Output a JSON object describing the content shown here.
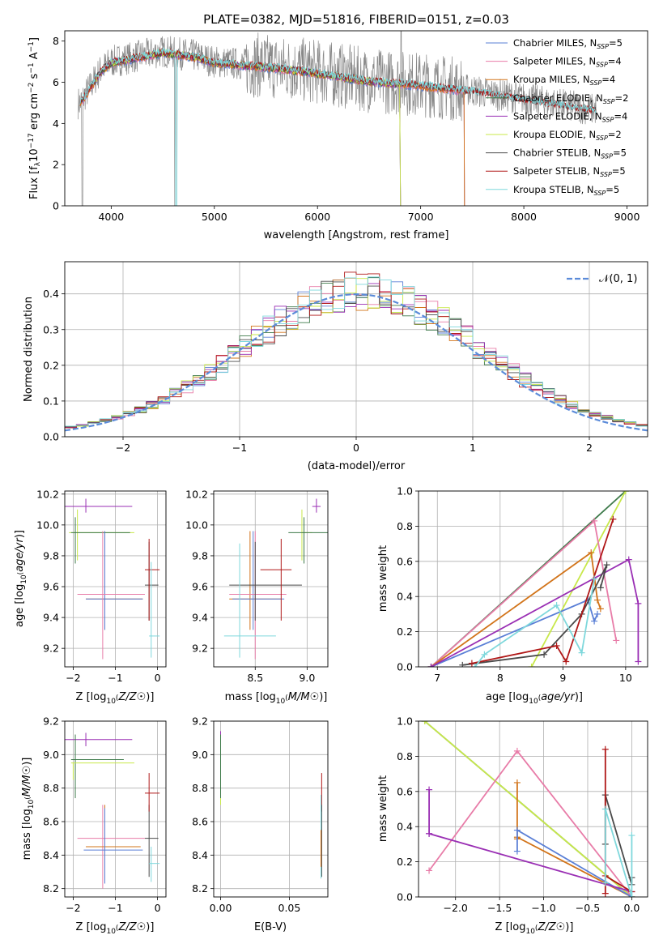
{
  "title": "PLATE=0382, MJD=51816, FIBERID=0151, z=0.03",
  "colors": {
    "Chabrier MILES": "#5a7fd6",
    "Salpeter MILES": "#e87ca8",
    "Kroupa MILES": "#d2741a",
    "Chabrier ELODIE": "#3e7a4a",
    "Salpeter ELODIE": "#9a2fb4",
    "Kroupa ELODIE": "#c8e84a",
    "Chabrier STELIB": "#4a4a4a",
    "Salpeter STELIB": "#b01818",
    "Kroupa STELIB": "#7fd8dc",
    "data": "#888888",
    "gaussian": "#5b8bd9",
    "grid": "#b0b0b0"
  },
  "chart_data": [
    {
      "type": "line",
      "panel": "spectrum",
      "title": "PLATE=0382, MJD=51816, FIBERID=0151, z=0.03",
      "xlabel": "wavelength [Angstrom, rest frame]",
      "ylabel": "Flux [f_λ10^-17 erg cm^-2 s^-1 A^-1]",
      "xlim": [
        3550,
        9200
      ],
      "ylim": [
        0,
        8.5
      ],
      "xticks": [
        4000,
        5000,
        6000,
        7000,
        8000,
        9000
      ],
      "yticks": [
        0,
        2,
        4,
        6,
        8
      ],
      "grid": false,
      "legend_position": "top-right",
      "legend": [
        {
          "label": "Chabrier MILES, N",
          "sub": "SSP",
          "suffix": "=5",
          "key": "Chabrier MILES"
        },
        {
          "label": "Salpeter MILES, N",
          "sub": "SSP",
          "suffix": "=4",
          "key": "Salpeter MILES"
        },
        {
          "label": "Kroupa MILES, N",
          "sub": "SSP",
          "suffix": "=4",
          "key": "Kroupa MILES"
        },
        {
          "label": "Chabrier ELODIE, N",
          "sub": "SSP",
          "suffix": "=2",
          "key": "Chabrier ELODIE"
        },
        {
          "label": "Salpeter ELODIE, N",
          "sub": "SSP",
          "suffix": "=4",
          "key": "Salpeter ELODIE"
        },
        {
          "label": "Kroupa ELODIE, N",
          "sub": "SSP",
          "suffix": "=2",
          "key": "Kroupa ELODIE"
        },
        {
          "label": "Chabrier STELIB, N",
          "sub": "SSP",
          "suffix": "=5",
          "key": "Chabrier STELIB"
        },
        {
          "label": "Salpeter STELIB, N",
          "sub": "SSP",
          "suffix": "=5",
          "key": "Salpeter STELIB"
        },
        {
          "label": "Kroupa STELIB, N",
          "sub": "SSP",
          "suffix": "=5",
          "key": "Kroupa STELIB"
        }
      ],
      "continuum": {
        "x": [
          3700,
          3800,
          3900,
          4000,
          4200,
          4500,
          4800,
          5000,
          5500,
          6000,
          6500,
          7000,
          7500,
          8000,
          8500,
          8800
        ],
        "y": [
          5.0,
          5.8,
          6.6,
          7.0,
          7.2,
          7.5,
          7.3,
          7.0,
          6.8,
          6.5,
          6.1,
          5.9,
          5.6,
          5.2,
          4.8,
          4.6
        ]
      },
      "model_ranges": {
        "Chabrier MILES": [
          3700,
          7420
        ],
        "Salpeter MILES": [
          3700,
          7420
        ],
        "Kroupa MILES": [
          3700,
          7420
        ],
        "Chabrier ELODIE": [
          3850,
          6800
        ],
        "Salpeter ELODIE": [
          3850,
          6800
        ],
        "Kroupa ELODIE": [
          3850,
          6800
        ],
        "Chabrier STELIB": [
          3700,
          8700
        ],
        "Salpeter STELIB": [
          3700,
          8700
        ],
        "Kroupa STELIB": [
          3700,
          8700
        ]
      },
      "data_range": [
        3680,
        8700
      ]
    },
    {
      "type": "histogram",
      "panel": "residuals",
      "xlabel": "(data-model)/error",
      "ylabel": "Normed distribution",
      "xlim": [
        -2.5,
        2.5
      ],
      "ylim": [
        0,
        0.49
      ],
      "xticks": [
        -2,
        -1,
        0,
        1,
        2
      ],
      "yticks": [
        0.0,
        0.1,
        0.2,
        0.3,
        0.4
      ],
      "grid": true,
      "legend_position": "top-right",
      "gaussian_label": "𝒩(0, 1)",
      "bin_width": 0.1,
      "bins_from": -2.5
    },
    {
      "type": "scatter",
      "panel": "Z-age",
      "xlabel": "Z [log10(Z/Z☉)]",
      "ylabel": "age  [log10(age/yr)]",
      "xlim": [
        -2.2,
        0.2
      ],
      "ylim": [
        9.08,
        10.22
      ],
      "xticks": [
        -2,
        -1,
        0
      ],
      "yticks": [
        9.2,
        9.4,
        9.6,
        9.8,
        10.0,
        10.2
      ],
      "points": [
        {
          "key": "Salpeter ELODIE",
          "x": -1.7,
          "y": 10.12,
          "xerr": [
            0.55,
            1.1
          ],
          "yerr": [
            0.04,
            0.05
          ]
        },
        {
          "key": "Kroupa ELODIE",
          "x": -1.9,
          "y": 9.95,
          "xerr": [
            0.2,
            1.35
          ],
          "yerr": [
            0.18,
            0.15
          ]
        },
        {
          "key": "Chabrier ELODIE",
          "x": -1.95,
          "y": 9.95,
          "xerr": [
            0.1,
            1.3
          ],
          "yerr": [
            0.2,
            0.1
          ]
        },
        {
          "key": "Kroupa MILES",
          "x": -1.25,
          "y": 9.52,
          "xerr": [
            0.45,
            0.9
          ],
          "yerr": [
            0.2,
            0.44
          ]
        },
        {
          "key": "Chabrier MILES",
          "x": -1.25,
          "y": 9.52,
          "xerr": [
            0.45,
            0.9
          ],
          "yerr": [
            0.2,
            0.44
          ]
        },
        {
          "key": "Salpeter MILES",
          "x": -1.3,
          "y": 9.55,
          "xerr": [
            0.6,
            1.0
          ],
          "yerr": [
            0.42,
            0.41
          ]
        },
        {
          "key": "Chabrier STELIB",
          "x": -0.2,
          "y": 9.61,
          "xerr": [
            0.1,
            0.22
          ],
          "yerr": [
            0.23,
            0.28
          ]
        },
        {
          "key": "Salpeter STELIB",
          "x": -0.2,
          "y": 9.71,
          "xerr": [
            0.1,
            0.25
          ],
          "yerr": [
            0.33,
            0.2
          ]
        },
        {
          "key": "Kroupa STELIB",
          "x": -0.15,
          "y": 9.28,
          "xerr": [
            0.05,
            0.2
          ],
          "yerr": [
            0.14,
            0.48
          ]
        }
      ]
    },
    {
      "type": "scatter",
      "panel": "mass-age",
      "xlabel": "mass [log10(M/M☉)]",
      "ylabel": "",
      "xlim": [
        8.1,
        9.2
      ],
      "ylim": [
        9.08,
        10.22
      ],
      "xticks": [
        8.5,
        9.0
      ],
      "yticks": [
        9.2,
        9.4,
        9.6,
        9.8,
        10.0,
        10.2
      ],
      "points": [
        {
          "key": "Salpeter ELODIE",
          "x": 9.09,
          "y": 10.12,
          "xerr": [
            0.04,
            0.04
          ],
          "yerr": [
            0.04,
            0.05
          ]
        },
        {
          "key": "Kroupa ELODIE",
          "x": 8.95,
          "y": 9.95,
          "xerr": [
            0.0,
            0.1
          ],
          "yerr": [
            0.18,
            0.15
          ]
        },
        {
          "key": "Chabrier ELODIE",
          "x": 8.97,
          "y": 9.95,
          "xerr": [
            0.15,
            0.23
          ],
          "yerr": [
            0.2,
            0.1
          ]
        },
        {
          "key": "Kroupa MILES",
          "x": 8.45,
          "y": 9.52,
          "xerr": [
            0.2,
            0.3
          ],
          "yerr": [
            0.2,
            0.44
          ]
        },
        {
          "key": "Chabrier MILES",
          "x": 8.48,
          "y": 9.52,
          "xerr": [
            0.2,
            0.3
          ],
          "yerr": [
            0.2,
            0.44
          ]
        },
        {
          "key": "Salpeter MILES",
          "x": 8.5,
          "y": 9.55,
          "xerr": [
            0.25,
            0.3
          ],
          "yerr": [
            0.42,
            0.41
          ]
        },
        {
          "key": "Chabrier STELIB",
          "x": 8.5,
          "y": 9.61,
          "xerr": [
            0.25,
            0.45
          ],
          "yerr": [
            0.23,
            0.28
          ]
        },
        {
          "key": "Salpeter STELIB",
          "x": 8.75,
          "y": 9.71,
          "xerr": [
            0.2,
            0.1
          ],
          "yerr": [
            0.33,
            0.2
          ]
        },
        {
          "key": "Kroupa STELIB",
          "x": 8.35,
          "y": 9.28,
          "xerr": [
            0.15,
            0.35
          ],
          "yerr": [
            0.14,
            0.6
          ]
        }
      ]
    },
    {
      "type": "line",
      "panel": "age-massweight",
      "xlabel": "age  [log10(age/yr)]",
      "ylabel": "mass weight",
      "xlim": [
        6.7,
        10.35
      ],
      "ylim": [
        0,
        1.0
      ],
      "xticks": [
        7,
        8,
        9,
        10
      ],
      "yticks": [
        0.0,
        0.2,
        0.4,
        0.6,
        0.8,
        1.0
      ],
      "grid": true,
      "series": [
        {
          "key": "Chabrier ELODIE",
          "x": [
            6.9,
            10.0
          ],
          "y": [
            0.0,
            1.0
          ]
        },
        {
          "key": "Kroupa ELODIE",
          "x": [
            8.5,
            10.0
          ],
          "y": [
            0.0,
            1.0
          ]
        },
        {
          "key": "Salpeter MILES",
          "x": [
            6.9,
            9.5,
            9.85
          ],
          "y": [
            0.0,
            0.83,
            0.15
          ]
        },
        {
          "key": "Kroupa MILES",
          "x": [
            6.9,
            9.45,
            9.55,
            9.6
          ],
          "y": [
            0.0,
            0.65,
            0.38,
            0.33
          ]
        },
        {
          "key": "Chabrier MILES",
          "x": [
            6.9,
            9.4,
            9.5,
            9.55
          ],
          "y": [
            0.0,
            0.38,
            0.26,
            0.3
          ]
        },
        {
          "key": "Salpeter ELODIE",
          "x": [
            6.9,
            10.05,
            10.2,
            10.2
          ],
          "y": [
            0.0,
            0.61,
            0.36,
            0.03
          ]
        },
        {
          "key": "Chabrier STELIB",
          "x": [
            7.4,
            8.7,
            9.3,
            9.7,
            9.6
          ],
          "y": [
            0.01,
            0.07,
            0.3,
            0.58,
            0.45
          ]
        },
        {
          "key": "Salpeter STELIB",
          "x": [
            7.55,
            8.9,
            9.05,
            9.8
          ],
          "y": [
            0.02,
            0.12,
            0.03,
            0.84
          ]
        },
        {
          "key": "Kroupa STELIB",
          "x": [
            7.6,
            7.75,
            8.9,
            9.3,
            9.5
          ],
          "y": [
            0.0,
            0.07,
            0.35,
            0.08,
            0.5
          ]
        }
      ]
    },
    {
      "type": "scatter",
      "panel": "Z-mass",
      "xlabel": "Z [log10(Z/Z☉)]",
      "ylabel": "mass [log10(M/M☉)]",
      "xlim": [
        -2.2,
        0.2
      ],
      "ylim": [
        8.15,
        9.2
      ],
      "xticks": [
        -2,
        -1,
        0
      ],
      "yticks": [
        8.2,
        8.4,
        8.6,
        8.8,
        9.0,
        9.2
      ],
      "points": [
        {
          "key": "Salpeter ELODIE",
          "x": -1.7,
          "y": 9.09,
          "xerr": [
            0.55,
            1.1
          ],
          "yerr": [
            0.04,
            0.04
          ]
        },
        {
          "key": "Chabrier ELODIE",
          "x": -1.95,
          "y": 8.97,
          "xerr": [
            0.1,
            1.15
          ],
          "yerr": [
            0.23,
            0.15
          ]
        },
        {
          "key": "Kroupa ELODIE",
          "x": -2.0,
          "y": 8.95,
          "xerr": [
            0.05,
            1.45
          ],
          "yerr": [
            0.1,
            0.0
          ]
        },
        {
          "key": "Salpeter MILES",
          "x": -1.3,
          "y": 8.5,
          "xerr": [
            0.6,
            1.0
          ],
          "yerr": [
            0.3,
            0.2
          ]
        },
        {
          "key": "Kroupa MILES",
          "x": -1.25,
          "y": 8.45,
          "xerr": [
            0.45,
            0.85
          ],
          "yerr": [
            0.2,
            0.25
          ]
        },
        {
          "key": "Chabrier MILES",
          "x": -1.25,
          "y": 8.43,
          "xerr": [
            0.5,
            0.9
          ],
          "yerr": [
            0.2,
            0.25
          ]
        },
        {
          "key": "Chabrier STELIB",
          "x": -0.2,
          "y": 8.5,
          "xerr": [
            0.1,
            0.22
          ],
          "yerr": [
            0.23,
            0.2
          ]
        },
        {
          "key": "Salpeter STELIB",
          "x": -0.2,
          "y": 8.77,
          "xerr": [
            0.1,
            0.25
          ],
          "yerr": [
            0.11,
            0.12
          ]
        },
        {
          "key": "Kroupa STELIB",
          "x": -0.15,
          "y": 8.35,
          "xerr": [
            0.05,
            0.2
          ],
          "yerr": [
            0.11,
            0.1
          ]
        }
      ]
    },
    {
      "type": "scatter",
      "panel": "EBV-mass",
      "xlabel": "E(B-V)",
      "ylabel": "",
      "xlim": [
        -0.005,
        0.078
      ],
      "ylim": [
        8.15,
        9.2
      ],
      "xticks": [
        0.0,
        0.05
      ],
      "yticks": [
        8.2,
        8.4,
        8.6,
        8.8,
        9.0,
        9.2
      ],
      "points": [
        {
          "key": "Salpeter ELODIE",
          "x": 0.0,
          "y": 9.09,
          "xerr": [
            0,
            0
          ],
          "yerr": [
            0.04,
            0.05
          ]
        },
        {
          "key": "Kroupa ELODIE",
          "x": 0.0,
          "y": 8.95,
          "xerr": [
            0,
            0
          ],
          "yerr": [
            0.25,
            0.12
          ]
        },
        {
          "key": "Chabrier ELODIE",
          "x": 0.0,
          "y": 8.97,
          "xerr": [
            0,
            0
          ],
          "yerr": [
            0.23,
            0.15
          ]
        },
        {
          "key": "Salpeter STELIB",
          "x": 0.0735,
          "y": 8.77,
          "xerr": [
            0,
            0
          ],
          "yerr": [
            0.11,
            0.12
          ]
        },
        {
          "key": "Chabrier STELIB",
          "x": 0.0735,
          "y": 8.5,
          "xerr": [
            0,
            0
          ],
          "yerr": [
            0.23,
            0.2
          ]
        },
        {
          "key": "Kroupa STELIB",
          "x": 0.073,
          "y": 8.4,
          "xerr": [
            0,
            0
          ],
          "yerr": [
            0.14,
            0.36
          ]
        },
        {
          "key": "Kroupa MILES",
          "x": 0.073,
          "y": 8.45,
          "xerr": [
            0,
            0
          ],
          "yerr": [
            0.12,
            0.1
          ]
        }
      ]
    },
    {
      "type": "line",
      "panel": "Z-massweight",
      "xlabel": "Z [log10(Z/Z☉)]",
      "ylabel": "mass weight",
      "xlim": [
        -2.42,
        0.18
      ],
      "ylim": [
        0,
        1.0
      ],
      "xticks": [
        -2.0,
        -1.5,
        -1.0,
        -0.5,
        0.0
      ],
      "yticks": [
        0.0,
        0.2,
        0.4,
        0.6,
        0.8,
        1.0
      ],
      "grid": true,
      "series": [
        {
          "key": "Chabrier ELODIE",
          "x": [
            -2.35,
            0.0
          ],
          "y": [
            1.0,
            0.0
          ]
        },
        {
          "key": "Kroupa ELODIE",
          "x": [
            -2.35,
            0.0
          ],
          "y": [
            1.0,
            0.0
          ]
        },
        {
          "key": "Salpeter MILES",
          "x": [
            -2.3,
            -1.3,
            0.0
          ],
          "y": [
            0.15,
            0.83,
            0.0
          ]
        },
        {
          "key": "Kroupa MILES",
          "x": [
            -1.3,
            -1.3,
            -1.3,
            0.0
          ],
          "y": [
            0.65,
            0.33,
            0.34,
            0.0
          ]
        },
        {
          "key": "Chabrier MILES",
          "x": [
            -1.3,
            -1.3,
            0.0
          ],
          "y": [
            0.26,
            0.38,
            0.0
          ]
        },
        {
          "key": "Salpeter ELODIE",
          "x": [
            -2.3,
            -2.3,
            -2.3,
            0.0
          ],
          "y": [
            0.61,
            0.36,
            0.36,
            0.03
          ]
        },
        {
          "key": "Chabrier STELIB",
          "x": [
            -0.3,
            -0.3,
            0.0,
            0.0
          ],
          "y": [
            0.3,
            0.58,
            0.07,
            0.11
          ]
        },
        {
          "key": "Salpeter STELIB",
          "x": [
            -0.3,
            -0.3,
            -0.3,
            0.0
          ],
          "y": [
            0.02,
            0.84,
            0.12,
            0.03
          ]
        },
        {
          "key": "Kroupa STELIB",
          "x": [
            -0.3,
            -0.3,
            0.0,
            0.0
          ],
          "y": [
            0.08,
            0.5,
            0.0,
            0.35
          ]
        }
      ]
    }
  ]
}
